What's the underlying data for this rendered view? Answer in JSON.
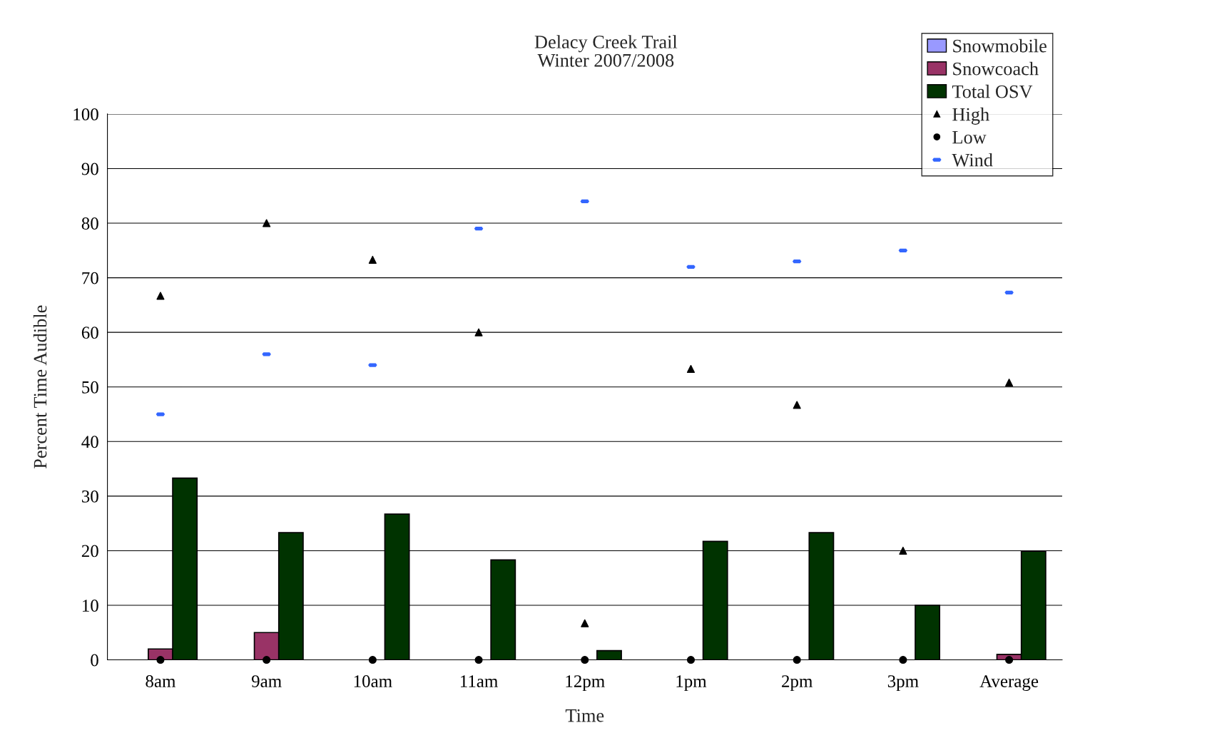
{
  "chart_data": {
    "type": "bar",
    "title": "Delacy Creek Trail\nWinter 2007/2008",
    "xlabel": "Time",
    "ylabel": "Percent Time Audible",
    "categories": [
      "8am",
      "9am",
      "10am",
      "11am",
      "12pm",
      "1pm",
      "2pm",
      "3pm",
      "Average"
    ],
    "series": [
      {
        "name": "Snowmobile",
        "color": "#9999ff",
        "values": [
          0,
          0,
          0,
          0,
          0,
          0,
          0,
          0,
          0
        ]
      },
      {
        "name": "Snowcoach",
        "color": "#993366",
        "values": [
          2,
          5,
          0,
          0,
          0,
          0,
          0,
          0,
          1
        ]
      },
      {
        "name": "Total OSV",
        "color": "#003300",
        "values": [
          33.3,
          23.3,
          26.7,
          18.3,
          1.7,
          21.7,
          23.3,
          10,
          19.9
        ]
      },
      {
        "name": "High",
        "type": "scatter",
        "marker": "triangle",
        "color": "#000000",
        "values": [
          66.7,
          80,
          73.3,
          60,
          6.7,
          53.3,
          46.7,
          20,
          50.8
        ]
      },
      {
        "name": "Low",
        "type": "scatter",
        "marker": "circle",
        "color": "#000000",
        "values": [
          0,
          0,
          0,
          0,
          0,
          0,
          0,
          0,
          0
        ]
      },
      {
        "name": "Wind",
        "type": "scatter",
        "color": "#3366ff",
        "values": [
          45,
          56,
          54,
          79,
          84,
          72,
          73,
          75,
          67.3
        ]
      }
    ],
    "ylim": [
      0,
      100
    ],
    "yticks": [
      0,
      10,
      20,
      30,
      40,
      50,
      60,
      70,
      80,
      90,
      100
    ],
    "grid": "y",
    "legend": "top right"
  }
}
